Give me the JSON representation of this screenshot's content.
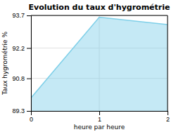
{
  "chart_data": {
    "type": "area",
    "title": "Evolution du taux d'hygrométrie",
    "xlabel": "heure par heure",
    "ylabel": "Taux hygrométrie %",
    "x": [
      0,
      1,
      2
    ],
    "values": [
      89.9,
      93.62,
      93.28
    ],
    "color": "#7ecfe8",
    "xlim": [
      0,
      2
    ],
    "ylim": [
      89.3,
      93.7
    ],
    "xticks": [
      0,
      1,
      2
    ],
    "yticks": [
      89.3,
      90.8,
      92.2,
      93.7
    ],
    "grid": true
  }
}
